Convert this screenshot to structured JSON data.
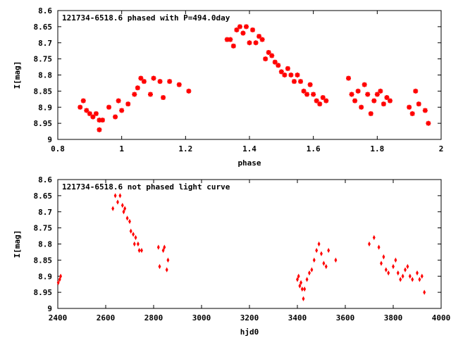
{
  "chart_data": [
    {
      "type": "scatter",
      "title": "121734-6518.6 phased with P=494.0day",
      "xlabel": "phase",
      "ylabel": "I[mag]",
      "xlim": [
        0.8,
        2.0
      ],
      "ylim": [
        8.6,
        9.0
      ],
      "y_inverted": true,
      "xticks": [
        "0.8",
        "1",
        "1.2",
        "1.4",
        "1.6",
        "1.8",
        "2"
      ],
      "yticks": [
        "8.6",
        "8.65",
        "8.7",
        "8.75",
        "8.8",
        "8.85",
        "8.9",
        "8.95",
        "9"
      ],
      "marker": "star",
      "color": "#ff0000",
      "points": [
        [
          0.87,
          8.9
        ],
        [
          0.88,
          8.88
        ],
        [
          0.89,
          8.91
        ],
        [
          0.9,
          8.92
        ],
        [
          0.91,
          8.93
        ],
        [
          0.92,
          8.92
        ],
        [
          0.93,
          8.94
        ],
        [
          0.93,
          8.97
        ],
        [
          0.94,
          8.94
        ],
        [
          0.96,
          8.9
        ],
        [
          0.98,
          8.93
        ],
        [
          0.99,
          8.88
        ],
        [
          1.0,
          8.91
        ],
        [
          1.02,
          8.89
        ],
        [
          1.04,
          8.86
        ],
        [
          1.05,
          8.84
        ],
        [
          1.06,
          8.81
        ],
        [
          1.07,
          8.82
        ],
        [
          1.09,
          8.86
        ],
        [
          1.1,
          8.81
        ],
        [
          1.12,
          8.82
        ],
        [
          1.13,
          8.87
        ],
        [
          1.15,
          8.82
        ],
        [
          1.18,
          8.83
        ],
        [
          1.21,
          8.85
        ],
        [
          1.33,
          8.69
        ],
        [
          1.34,
          8.69
        ],
        [
          1.35,
          8.71
        ],
        [
          1.36,
          8.66
        ],
        [
          1.37,
          8.65
        ],
        [
          1.38,
          8.67
        ],
        [
          1.39,
          8.65
        ],
        [
          1.4,
          8.7
        ],
        [
          1.41,
          8.66
        ],
        [
          1.42,
          8.7
        ],
        [
          1.43,
          8.68
        ],
        [
          1.44,
          8.69
        ],
        [
          1.45,
          8.75
        ],
        [
          1.46,
          8.73
        ],
        [
          1.47,
          8.74
        ],
        [
          1.48,
          8.76
        ],
        [
          1.49,
          8.77
        ],
        [
          1.5,
          8.79
        ],
        [
          1.51,
          8.8
        ],
        [
          1.52,
          8.78
        ],
        [
          1.53,
          8.8
        ],
        [
          1.54,
          8.82
        ],
        [
          1.55,
          8.8
        ],
        [
          1.56,
          8.82
        ],
        [
          1.57,
          8.85
        ],
        [
          1.58,
          8.86
        ],
        [
          1.59,
          8.83
        ],
        [
          1.6,
          8.86
        ],
        [
          1.61,
          8.88
        ],
        [
          1.62,
          8.89
        ],
        [
          1.63,
          8.87
        ],
        [
          1.64,
          8.88
        ],
        [
          1.71,
          8.81
        ],
        [
          1.72,
          8.86
        ],
        [
          1.73,
          8.88
        ],
        [
          1.74,
          8.85
        ],
        [
          1.75,
          8.9
        ],
        [
          1.76,
          8.83
        ],
        [
          1.77,
          8.86
        ],
        [
          1.78,
          8.92
        ],
        [
          1.79,
          8.88
        ],
        [
          1.8,
          8.86
        ],
        [
          1.81,
          8.85
        ],
        [
          1.82,
          8.89
        ],
        [
          1.83,
          8.87
        ],
        [
          1.84,
          8.88
        ],
        [
          1.9,
          8.9
        ],
        [
          1.91,
          8.92
        ],
        [
          1.92,
          8.85
        ],
        [
          1.93,
          8.89
        ],
        [
          1.95,
          8.91
        ],
        [
          1.96,
          8.95
        ]
      ]
    },
    {
      "type": "scatter",
      "title": "121734-6518.6 not phased light curve",
      "xlabel": "hjd0",
      "ylabel": "I[mag]",
      "xlim": [
        2400,
        4000
      ],
      "ylim": [
        8.6,
        9.0
      ],
      "y_inverted": true,
      "xticks": [
        "2400",
        "2600",
        "2800",
        "3000",
        "3200",
        "3400",
        "3600",
        "3800",
        "4000"
      ],
      "yticks": [
        "8.6",
        "8.65",
        "8.7",
        "8.75",
        "8.8",
        "8.85",
        "8.9",
        "8.95",
        "9"
      ],
      "marker": "diamond",
      "color": "#ff0000",
      "points": [
        [
          2402,
          8.92
        ],
        [
          2408,
          8.91
        ],
        [
          2412,
          8.9
        ],
        [
          2630,
          8.69
        ],
        [
          2640,
          8.65
        ],
        [
          2650,
          8.67
        ],
        [
          2660,
          8.65
        ],
        [
          2670,
          8.68
        ],
        [
          2675,
          8.7
        ],
        [
          2680,
          8.69
        ],
        [
          2690,
          8.72
        ],
        [
          2700,
          8.73
        ],
        [
          2705,
          8.76
        ],
        [
          2715,
          8.77
        ],
        [
          2720,
          8.8
        ],
        [
          2725,
          8.78
        ],
        [
          2735,
          8.8
        ],
        [
          2740,
          8.82
        ],
        [
          2750,
          8.82
        ],
        [
          2820,
          8.81
        ],
        [
          2825,
          8.87
        ],
        [
          2840,
          8.82
        ],
        [
          2845,
          8.81
        ],
        [
          2855,
          8.88
        ],
        [
          2860,
          8.85
        ],
        [
          3400,
          8.91
        ],
        [
          3405,
          8.9
        ],
        [
          3410,
          8.93
        ],
        [
          3415,
          8.92
        ],
        [
          3420,
          8.94
        ],
        [
          3425,
          8.97
        ],
        [
          3430,
          8.94
        ],
        [
          3440,
          8.91
        ],
        [
          3450,
          8.89
        ],
        [
          3460,
          8.88
        ],
        [
          3470,
          8.85
        ],
        [
          3480,
          8.82
        ],
        [
          3490,
          8.8
        ],
        [
          3500,
          8.83
        ],
        [
          3510,
          8.86
        ],
        [
          3520,
          8.87
        ],
        [
          3530,
          8.82
        ],
        [
          3560,
          8.85
        ],
        [
          3700,
          8.8
        ],
        [
          3720,
          8.78
        ],
        [
          3740,
          8.81
        ],
        [
          3750,
          8.86
        ],
        [
          3760,
          8.84
        ],
        [
          3770,
          8.88
        ],
        [
          3780,
          8.89
        ],
        [
          3800,
          8.87
        ],
        [
          3810,
          8.85
        ],
        [
          3820,
          8.89
        ],
        [
          3830,
          8.91
        ],
        [
          3840,
          8.9
        ],
        [
          3850,
          8.88
        ],
        [
          3860,
          8.87
        ],
        [
          3870,
          8.9
        ],
        [
          3880,
          8.91
        ],
        [
          3900,
          8.89
        ],
        [
          3910,
          8.91
        ],
        [
          3920,
          8.9
        ],
        [
          3930,
          8.95
        ]
      ]
    }
  ]
}
